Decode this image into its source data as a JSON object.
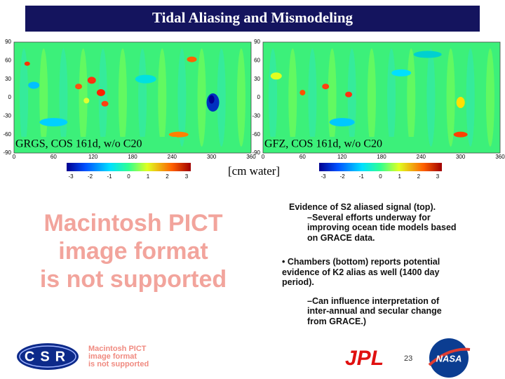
{
  "title": "Tidal Aliasing and Mismodeling",
  "maps": [
    {
      "label": "GRGS, COS 161d, w/o C20",
      "yticks": [
        90,
        60,
        30,
        0,
        -30,
        -60,
        -90
      ],
      "xticks": [
        0,
        60,
        120,
        180,
        240,
        300,
        360
      ]
    },
    {
      "label": "GFZ, COS 161d, w/o C20",
      "yticks": [
        90,
        60,
        30,
        0,
        -30,
        -60,
        -90
      ],
      "xticks": [
        0,
        60,
        120,
        180,
        240,
        300,
        360
      ]
    }
  ],
  "colorbars": [
    {
      "ticks": [
        -3,
        -2,
        -1,
        0,
        1,
        2,
        3
      ]
    },
    {
      "ticks": [
        -3,
        -2,
        -1,
        0,
        1,
        2,
        3
      ]
    }
  ],
  "unit": "[cm water]",
  "placeholder": {
    "lines": [
      "Macintosh PICT",
      "image format",
      "is not supported"
    ]
  },
  "notes": [
    "Evidence of S2 aliased signal (top).",
    "–Several efforts underway for improving ocean tide models based on GRACE data.",
    "• Chambers (bottom) reports potential evidence of K2 alias as well (1400 day period).",
    "–Can influence interpretation of inter-annual and secular change from GRACE.)"
  ],
  "footer": {
    "logo_left": "CSR",
    "placeholder_lines": [
      "Macintosh PICT",
      "image format",
      "is not supported"
    ],
    "logo_mid": "JPL",
    "page_number": "23",
    "logo_right": "NASA"
  }
}
